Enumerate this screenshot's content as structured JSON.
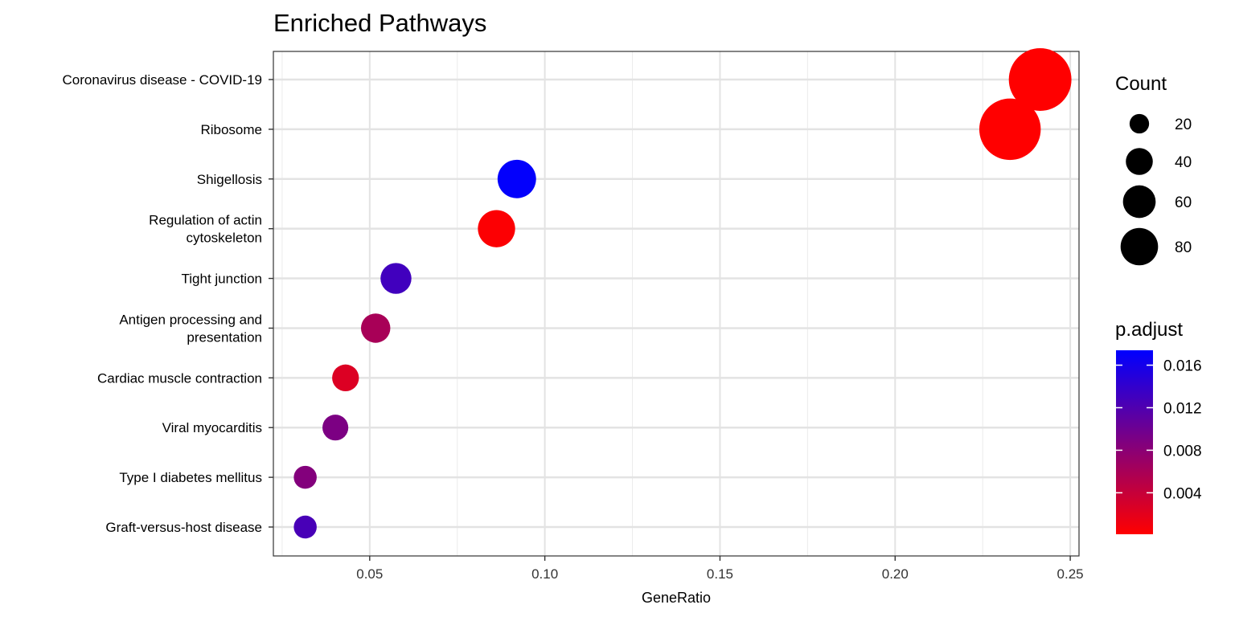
{
  "chart_data": {
    "type": "scatter",
    "title": "Enriched Pathways",
    "xlabel": "GeneRatio",
    "ylabel": "",
    "xlim": [
      0.0225,
      0.2525
    ],
    "xticks": [
      0.05,
      0.1,
      0.15,
      0.2,
      0.25
    ],
    "xtick_labels": [
      "0.05",
      "0.10",
      "0.15",
      "0.20",
      "0.25"
    ],
    "grid": true,
    "legend_placement": "right",
    "categories": [
      "Coronavirus disease - COVID-19",
      "Ribosome",
      "Shigellosis",
      "Regulation of actin\ncytoskeleton",
      "Tight junction",
      "Antigen processing and\npresentation",
      "Cardiac muscle contraction",
      "Viral myocarditis",
      "Type I diabetes mellitus",
      "Graft-versus-host disease"
    ],
    "points": [
      {
        "gene_ratio": 0.2414,
        "count": 82,
        "p_adjust": 0.0001
      },
      {
        "gene_ratio": 0.2328,
        "count": 79,
        "p_adjust": 0.0001
      },
      {
        "gene_ratio": 0.092,
        "count": 31,
        "p_adjust": 0.0172
      },
      {
        "gene_ratio": 0.0862,
        "count": 29,
        "p_adjust": 0.0003
      },
      {
        "gene_ratio": 0.0575,
        "count": 20,
        "p_adjust": 0.013
      },
      {
        "gene_ratio": 0.0517,
        "count": 18,
        "p_adjust": 0.006
      },
      {
        "gene_ratio": 0.0431,
        "count": 15,
        "p_adjust": 0.0025
      },
      {
        "gene_ratio": 0.0402,
        "count": 14,
        "p_adjust": 0.009
      },
      {
        "gene_ratio": 0.0316,
        "count": 11,
        "p_adjust": 0.0085
      },
      {
        "gene_ratio": 0.0316,
        "count": 11,
        "p_adjust": 0.0125
      }
    ],
    "size_legend": {
      "title": "Count",
      "values": [
        20,
        40,
        60,
        80
      ],
      "labels": [
        "20",
        "40",
        "60",
        "80"
      ]
    },
    "color_legend": {
      "title": "p.adjust",
      "range": [
        0.0001,
        0.0174
      ],
      "ticks": [
        0.004,
        0.008,
        0.012,
        0.016
      ],
      "tick_labels": [
        "0.004",
        "0.008",
        "0.012",
        "0.016"
      ],
      "low_color": "#ff0000",
      "high_color": "#0000ff"
    }
  }
}
